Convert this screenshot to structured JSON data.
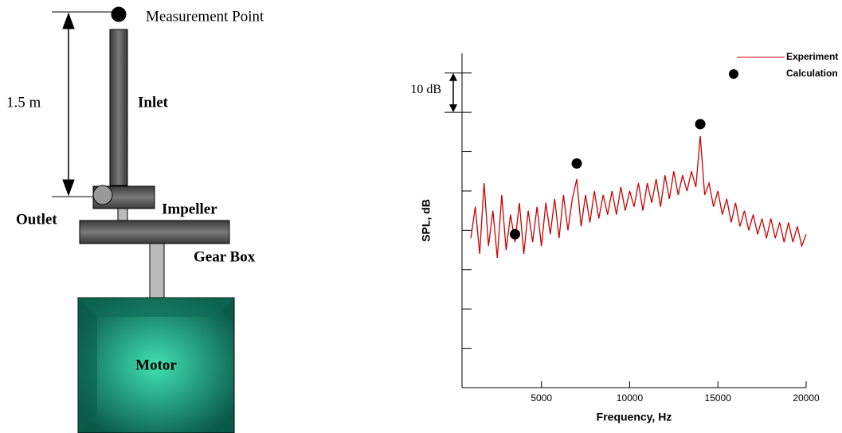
{
  "diagram": {
    "measurement_point": "Measurement Point",
    "length": "1.5 m",
    "inlet": "Inlet",
    "outlet": "Outlet",
    "impeller": "Impeller",
    "gear_box": "Gear Box",
    "motor": "Motor"
  },
  "chart_data": {
    "type": "line",
    "ylabel": "SPL, dB",
    "xlabel": "Frequency, Hz",
    "annotation": "10 dB",
    "xlim": [
      500,
      20000
    ],
    "xticks": [
      5000,
      10000,
      15000,
      20000
    ],
    "ylim": [
      0,
      85
    ],
    "yticks": [
      10,
      20,
      30,
      40,
      50,
      60,
      70,
      80
    ],
    "series": [
      {
        "name": "Experiment",
        "color": "#cc0000",
        "x": [
          1000,
          1250,
          1500,
          1750,
          2000,
          2250,
          2500,
          2750,
          3000,
          3250,
          3500,
          3750,
          4000,
          4250,
          4500,
          4750,
          5000,
          5250,
          5500,
          5750,
          6000,
          6250,
          6500,
          6750,
          7000,
          7250,
          7500,
          7750,
          8000,
          8250,
          8500,
          8750,
          9000,
          9250,
          9500,
          9750,
          10000,
          10250,
          10500,
          10750,
          11000,
          11250,
          11500,
          11750,
          12000,
          12250,
          12500,
          12750,
          13000,
          13250,
          13500,
          13750,
          14000,
          14250,
          14500,
          14750,
          15000,
          15250,
          15500,
          15750,
          16000,
          16250,
          16500,
          16750,
          17000,
          17250,
          17500,
          17750,
          18000,
          18250,
          18500,
          18750,
          19000,
          19250,
          19500,
          19750,
          20000
        ],
        "values": [
          38,
          46,
          34,
          52,
          36,
          45,
          33,
          49,
          35,
          44,
          37,
          47,
          34,
          45,
          37,
          46,
          36,
          47,
          39,
          48,
          38,
          49,
          40,
          48,
          53,
          41,
          49,
          42,
          50,
          43,
          49,
          44,
          50,
          44,
          51,
          45,
          50,
          46,
          52,
          45,
          52,
          47,
          53,
          46,
          54,
          48,
          55,
          49,
          54,
          50,
          55,
          51,
          64,
          49,
          52,
          46,
          50,
          44,
          48,
          42,
          47,
          41,
          45,
          40,
          44,
          39,
          43,
          38,
          43,
          38,
          42,
          37,
          42,
          37,
          41,
          36,
          39
        ]
      },
      {
        "name": "Calculation",
        "color": "#000000",
        "x": [
          3500,
          7000,
          14000
        ],
        "values": [
          39,
          57,
          67
        ]
      }
    ]
  }
}
